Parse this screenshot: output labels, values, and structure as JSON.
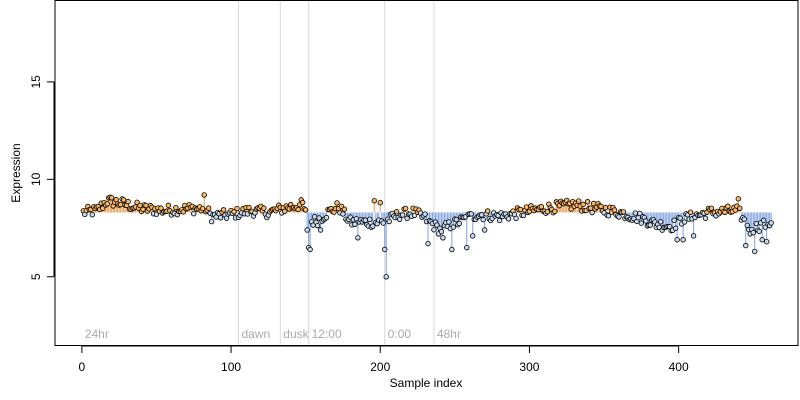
{
  "chart_data": {
    "type": "scatter",
    "title": "",
    "xlabel": "Sample index",
    "ylabel": "Expression",
    "xlim": [
      -18,
      480
    ],
    "ylim": [
      1.5,
      19.2
    ],
    "x_ticks": [
      0,
      100,
      200,
      300,
      400
    ],
    "y_ticks": [
      5,
      10,
      15
    ],
    "grid": false,
    "colors": {
      "point_stroke": "#000000",
      "down_fill": "#c6dbef",
      "up_fill": "#fdb863",
      "down_line": "#6a8fd8",
      "up_line": "#e08a2e",
      "guide": "#d9d9d9",
      "phase_text": "#aaaaaa"
    },
    "baseline": 8.3,
    "phase_markers": [
      {
        "x": 105,
        "label": "dawn"
      },
      {
        "x": 133,
        "label": "dusk"
      },
      {
        "x": 152,
        "label": "12:00"
      },
      {
        "x": 203,
        "label": "0:00"
      },
      {
        "x": 236,
        "label": "48hr"
      }
    ],
    "phase_start_label": "24hr",
    "anchors": [
      [
        1,
        8.3
      ],
      [
        10,
        8.4
      ],
      [
        17,
        8.9
      ],
      [
        25,
        8.8
      ],
      [
        40,
        8.5
      ],
      [
        55,
        8.4
      ],
      [
        70,
        8.5
      ],
      [
        83,
        8.5
      ],
      [
        87,
        8.1
      ],
      [
        100,
        8.2
      ],
      [
        113,
        8.4
      ],
      [
        125,
        8.3
      ],
      [
        140,
        8.6
      ],
      [
        148,
        8.7
      ],
      [
        152,
        7.8
      ],
      [
        158,
        7.9
      ],
      [
        165,
        8.3
      ],
      [
        172,
        8.6
      ],
      [
        180,
        7.8
      ],
      [
        190,
        7.8
      ],
      [
        200,
        7.8
      ],
      [
        205,
        7.9
      ],
      [
        213,
        8.2
      ],
      [
        222,
        8.3
      ],
      [
        230,
        8.0
      ],
      [
        240,
        7.4
      ],
      [
        255,
        7.9
      ],
      [
        265,
        8.2
      ],
      [
        280,
        8.1
      ],
      [
        295,
        8.3
      ],
      [
        310,
        8.5
      ],
      [
        320,
        8.6
      ],
      [
        330,
        8.7
      ],
      [
        345,
        8.5
      ],
      [
        360,
        8.3
      ],
      [
        375,
        8.0
      ],
      [
        385,
        7.7
      ],
      [
        395,
        7.6
      ],
      [
        405,
        8.0
      ],
      [
        420,
        8.3
      ],
      [
        440,
        8.4
      ],
      [
        445,
        7.7
      ],
      [
        450,
        7.5
      ],
      [
        462,
        7.8
      ]
    ],
    "outliers": [
      [
        82,
        9.2
      ],
      [
        151,
        7.4
      ],
      [
        152,
        6.5
      ],
      [
        153,
        6.4
      ],
      [
        160,
        7.4
      ],
      [
        185,
        7.0
      ],
      [
        196,
        8.9
      ],
      [
        200,
        8.8
      ],
      [
        203,
        6.4
      ],
      [
        204,
        5.0
      ],
      [
        232,
        6.7
      ],
      [
        242,
        7.0
      ],
      [
        248,
        6.4
      ],
      [
        258,
        6.5
      ],
      [
        262,
        7.1
      ],
      [
        399,
        6.9
      ],
      [
        403,
        6.9
      ],
      [
        440,
        9.0
      ],
      [
        445,
        6.6
      ],
      [
        448,
        7.2
      ],
      [
        451,
        6.3
      ],
      [
        456,
        6.9
      ],
      [
        459,
        6.8
      ],
      [
        410,
        7.1
      ],
      [
        270,
        7.4
      ]
    ],
    "series": [
      {
        "count": 462,
        "x_start": 1,
        "x_end": 462
      }
    ]
  }
}
